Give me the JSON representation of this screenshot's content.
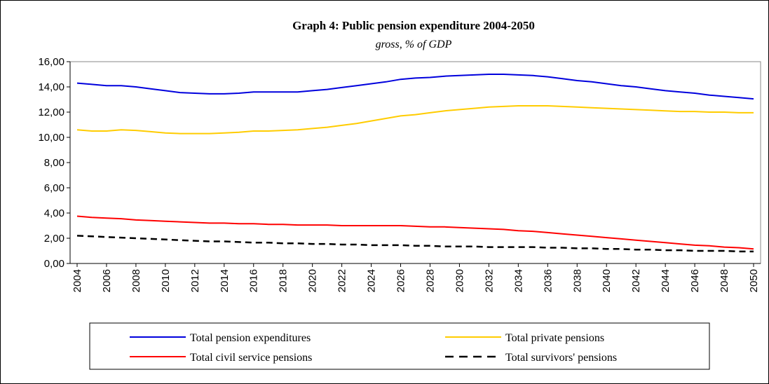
{
  "chart_data": {
    "type": "line",
    "title": "Graph 4: Public pension expenditure 2004-2050",
    "subtitle": "gross, % of GDP",
    "x": [
      2004,
      2005,
      2006,
      2007,
      2008,
      2009,
      2010,
      2011,
      2012,
      2013,
      2014,
      2015,
      2016,
      2017,
      2018,
      2019,
      2020,
      2021,
      2022,
      2023,
      2024,
      2025,
      2026,
      2027,
      2028,
      2029,
      2030,
      2031,
      2032,
      2033,
      2034,
      2035,
      2036,
      2037,
      2038,
      2039,
      2040,
      2041,
      2042,
      2043,
      2044,
      2045,
      2046,
      2047,
      2048,
      2049,
      2050
    ],
    "xlim": [
      2004,
      2050
    ],
    "xticks": [
      2004,
      2006,
      2008,
      2010,
      2012,
      2014,
      2016,
      2018,
      2020,
      2022,
      2024,
      2026,
      2028,
      2030,
      2032,
      2034,
      2036,
      2038,
      2040,
      2042,
      2044,
      2046,
      2048,
      2050
    ],
    "ylim": [
      0,
      16
    ],
    "yticks": [
      {
        "value": 0,
        "label": "0,00"
      },
      {
        "value": 2,
        "label": "2,00"
      },
      {
        "value": 4,
        "label": "4,00"
      },
      {
        "value": 6,
        "label": "6,00"
      },
      {
        "value": 8,
        "label": "8,00"
      },
      {
        "value": 10,
        "label": "10,00"
      },
      {
        "value": 12,
        "label": "12,00"
      },
      {
        "value": 14,
        "label": "14,00"
      },
      {
        "value": 16,
        "label": "16,00"
      }
    ],
    "legend": "bottom",
    "series": [
      {
        "name": "Total pension expenditures",
        "color": "#0000dd",
        "values": [
          14.3,
          14.2,
          14.1,
          14.1,
          14.0,
          13.85,
          13.7,
          13.55,
          13.5,
          13.45,
          13.45,
          13.5,
          13.6,
          13.6,
          13.6,
          13.6,
          13.7,
          13.8,
          13.95,
          14.1,
          14.25,
          14.4,
          14.6,
          14.7,
          14.75,
          14.85,
          14.9,
          14.95,
          15.0,
          15.0,
          14.95,
          14.9,
          14.8,
          14.65,
          14.5,
          14.4,
          14.25,
          14.1,
          14.0,
          13.85,
          13.7,
          13.6,
          13.5,
          13.35,
          13.25,
          13.15,
          13.05
        ]
      },
      {
        "name": "Total private pensions",
        "color": "#ffcc00",
        "values": [
          10.6,
          10.5,
          10.5,
          10.6,
          10.55,
          10.45,
          10.35,
          10.3,
          10.3,
          10.3,
          10.35,
          10.4,
          10.5,
          10.5,
          10.55,
          10.6,
          10.7,
          10.8,
          10.95,
          11.1,
          11.3,
          11.5,
          11.7,
          11.8,
          11.95,
          12.1,
          12.2,
          12.3,
          12.4,
          12.45,
          12.5,
          12.5,
          12.5,
          12.45,
          12.4,
          12.35,
          12.3,
          12.25,
          12.2,
          12.15,
          12.1,
          12.05,
          12.05,
          12.0,
          12.0,
          11.95,
          11.95
        ]
      },
      {
        "name": "Total civil service pensions",
        "color": "#ff0000",
        "values": [
          3.75,
          3.65,
          3.6,
          3.55,
          3.45,
          3.4,
          3.35,
          3.3,
          3.25,
          3.2,
          3.2,
          3.15,
          3.15,
          3.1,
          3.1,
          3.05,
          3.05,
          3.05,
          3.0,
          3.0,
          3.0,
          3.0,
          3.0,
          2.95,
          2.9,
          2.9,
          2.85,
          2.8,
          2.75,
          2.7,
          2.6,
          2.55,
          2.45,
          2.35,
          2.25,
          2.15,
          2.05,
          1.95,
          1.85,
          1.75,
          1.65,
          1.55,
          1.45,
          1.4,
          1.3,
          1.25,
          1.15
        ]
      },
      {
        "name": "Total survivors' pensions",
        "color": "#000000",
        "dashed": true,
        "values": [
          2.2,
          2.15,
          2.1,
          2.05,
          2.0,
          1.95,
          1.9,
          1.85,
          1.8,
          1.75,
          1.75,
          1.7,
          1.65,
          1.65,
          1.6,
          1.6,
          1.55,
          1.55,
          1.5,
          1.5,
          1.45,
          1.45,
          1.45,
          1.4,
          1.4,
          1.35,
          1.35,
          1.35,
          1.3,
          1.3,
          1.3,
          1.3,
          1.25,
          1.25,
          1.2,
          1.2,
          1.15,
          1.15,
          1.1,
          1.1,
          1.05,
          1.05,
          1.0,
          1.0,
          1.0,
          0.95,
          0.95
        ]
      }
    ]
  }
}
